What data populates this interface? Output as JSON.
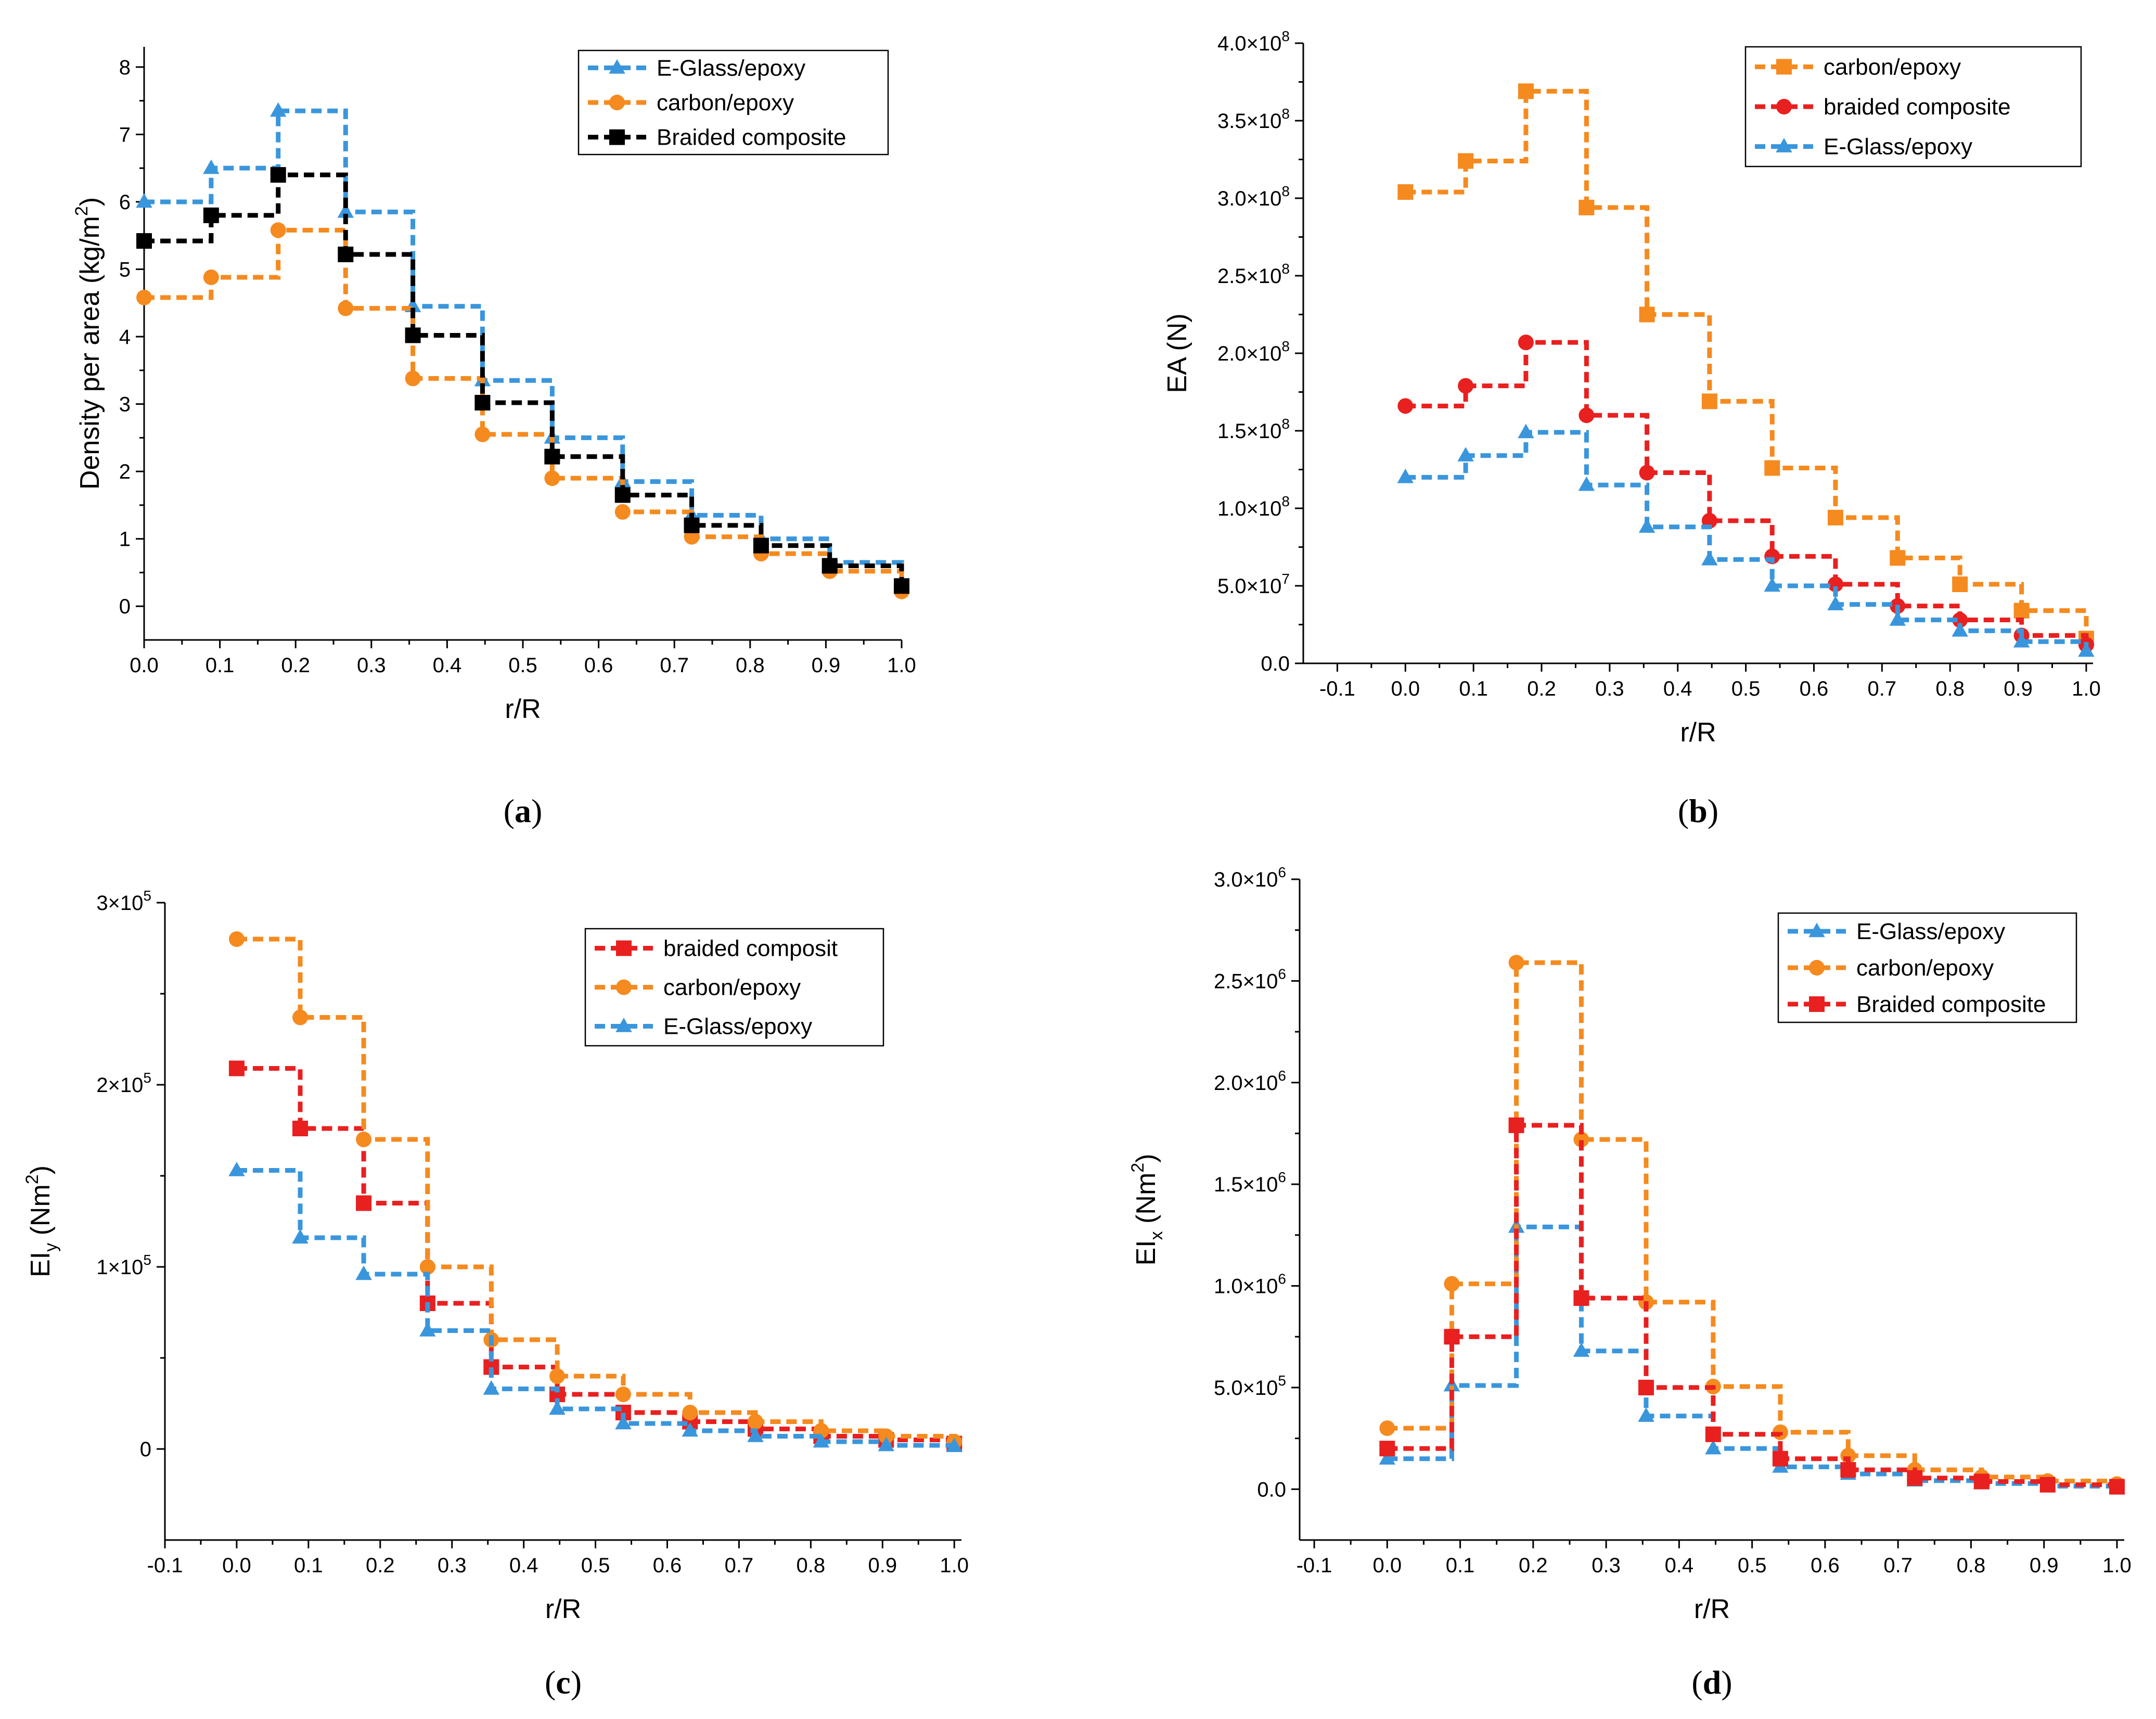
{
  "colors": {
    "E-Glass": "#3a96dc",
    "carbon": "#f58a1f",
    "braided_red": "#e8201f",
    "braided_black": "#000000"
  },
  "chart_data": [
    {
      "panel": "a",
      "panel_label_parts": [
        "(",
        "a",
        ")"
      ],
      "type": "line",
      "step": true,
      "xlabel": "r/R",
      "ylabel": "Density per area (kg/m²)",
      "ylabel_parts": [
        "Density per area (kg/m",
        "2",
        ")"
      ],
      "xlim": [
        0,
        1.0
      ],
      "ylim": [
        -0.5,
        8.3
      ],
      "xticks": [
        0.0,
        0.1,
        0.2,
        0.3,
        0.4,
        0.5,
        0.6,
        0.7,
        0.8,
        0.9,
        1.0
      ],
      "xtick_labels": [
        "0.0",
        "0.1",
        "0.2",
        "0.3",
        "0.4",
        "0.5",
        "0.6",
        "0.7",
        "0.8",
        "0.9",
        "1.0"
      ],
      "yticks": [
        0,
        1,
        2,
        3,
        4,
        5,
        6,
        7,
        8
      ],
      "ytick_labels": [
        "0",
        "1",
        "2",
        "3",
        "4",
        "5",
        "6",
        "7",
        "8"
      ],
      "x": [
        0,
        0.0885,
        0.177,
        0.266,
        0.3548,
        0.4467,
        0.5387,
        0.6317,
        0.7229,
        0.8145,
        0.905,
        1.0
      ],
      "legend_position": "top-right",
      "series": [
        {
          "name": "E-Glass/epoxy",
          "marker": "triangle",
          "color_key": "E-Glass",
          "values": [
            6.0,
            6.5,
            7.35,
            5.85,
            4.45,
            3.35,
            2.5,
            1.85,
            1.35,
            1.0,
            0.65,
            0.3
          ]
        },
        {
          "name": "carbon/epoxy",
          "marker": "circle",
          "color_key": "carbon",
          "values": [
            4.58,
            4.88,
            5.58,
            4.42,
            3.38,
            2.55,
            1.9,
            1.4,
            1.03,
            0.78,
            0.52,
            0.22
          ]
        },
        {
          "name": "Braided composite",
          "marker": "square",
          "color_key": "braided_black",
          "values": [
            5.42,
            5.8,
            6.4,
            5.22,
            4.02,
            3.02,
            2.22,
            1.65,
            1.2,
            0.9,
            0.6,
            0.3
          ]
        }
      ]
    },
    {
      "panel": "b",
      "panel_label_parts": [
        "(",
        "b",
        ")"
      ],
      "type": "line",
      "step": true,
      "xlabel": "r/R",
      "ylabel": "EA (N)",
      "xlim": [
        -0.15,
        1.01
      ],
      "ylim": [
        0,
        400000000.0
      ],
      "xticks": [
        -0.1,
        0.0,
        0.1,
        0.2,
        0.3,
        0.4,
        0.5,
        0.6,
        0.7,
        0.8,
        0.9,
        1.0
      ],
      "xtick_labels": [
        "-0.1",
        "0.0",
        "0.1",
        "0.2",
        "0.3",
        "0.4",
        "0.5",
        "0.6",
        "0.7",
        "0.8",
        "0.9",
        "1.0"
      ],
      "yticks": [
        0,
        50000000.0,
        100000000.0,
        150000000.0,
        200000000.0,
        250000000.0,
        300000000.0,
        350000000.0,
        400000000.0
      ],
      "ytick_labels": [
        {
          "m": "0.0",
          "e": ""
        },
        {
          "m": "5.0×10",
          "e": "7"
        },
        {
          "m": "1.0×10",
          "e": "8"
        },
        {
          "m": "1.5×10",
          "e": "8"
        },
        {
          "m": "2.0×10",
          "e": "8"
        },
        {
          "m": "2.5×10",
          "e": "8"
        },
        {
          "m": "3.0×10",
          "e": "8"
        },
        {
          "m": "3.5×10",
          "e": "8"
        },
        {
          "m": "4.0×10",
          "e": "8"
        }
      ],
      "x": [
        0,
        0.0885,
        0.177,
        0.266,
        0.3548,
        0.4467,
        0.5387,
        0.6317,
        0.7229,
        0.8145,
        0.905,
        1.0
      ],
      "legend_position": "top-right",
      "series": [
        {
          "name": "carbon/epoxy",
          "marker": "square",
          "color_key": "carbon",
          "values": [
            304000000.0,
            324000000.0,
            369000000.0,
            294000000.0,
            225000000.0,
            169000000.0,
            126000000.0,
            94000000.0,
            68000000.0,
            51000000.0,
            34000000.0,
            16000000.0
          ]
        },
        {
          "name": "braided composite",
          "marker": "circle",
          "color_key": "braided_red",
          "values": [
            166000000.0,
            179000000.0,
            207000000.0,
            160000000.0,
            123000000.0,
            92000000.0,
            69000000.0,
            51000000.0,
            37000000.0,
            28000000.0,
            18000000.0,
            12000000.0
          ]
        },
        {
          "name": "E-Glass/epoxy",
          "marker": "triangle",
          "color_key": "E-Glass",
          "values": [
            120000000.0,
            134000000.0,
            149000000.0,
            115000000.0,
            88000000.0,
            67000000.0,
            50000000.0,
            38000000.0,
            28000000.0,
            21000000.0,
            14000000.0,
            8000000.0
          ]
        }
      ]
    },
    {
      "panel": "c",
      "panel_label_parts": [
        "(",
        "c",
        ")"
      ],
      "type": "line",
      "step": true,
      "xlabel": "r/R",
      "ylabel": "EI_y (Nm²)",
      "ylabel_parts": [
        "EI",
        "y",
        " (Nm",
        "2",
        ")"
      ],
      "xlim": [
        -0.1,
        1.01
      ],
      "ylim": [
        -50000.0,
        300000.0
      ],
      "xticks": [
        -0.1,
        0.0,
        0.1,
        0.2,
        0.3,
        0.4,
        0.5,
        0.6,
        0.7,
        0.8,
        0.9,
        1.0
      ],
      "xtick_labels": [
        "-0.1",
        "0.0",
        "0.1",
        "0.2",
        "0.3",
        "0.4",
        "0.5",
        "0.6",
        "0.7",
        "0.8",
        "0.9",
        "1.0"
      ],
      "yticks": [
        0,
        100000.0,
        200000.0,
        300000.0
      ],
      "ytick_labels": [
        {
          "m": "0",
          "e": ""
        },
        {
          "m": "1×10",
          "e": "5"
        },
        {
          "m": "2×10",
          "e": "5"
        },
        {
          "m": "3×10",
          "e": "5"
        }
      ],
      "x": [
        0,
        0.0885,
        0.177,
        0.266,
        0.3548,
        0.4467,
        0.5387,
        0.6317,
        0.7229,
        0.8145,
        0.905,
        1.0
      ],
      "legend_position": "top-right",
      "series": [
        {
          "name": "braided composit",
          "marker": "square",
          "color_key": "braided_red",
          "values": [
            209000,
            176000,
            135000,
            80000,
            45000,
            30000,
            20000,
            15000,
            11000,
            7000,
            5000,
            3000
          ]
        },
        {
          "name": "carbon/epoxy",
          "marker": "circle",
          "color_key": "carbon",
          "values": [
            280000,
            237000,
            170000,
            100000,
            60000,
            40000,
            30000,
            20000,
            15000,
            10000,
            7000,
            4000
          ]
        },
        {
          "name": "E-Glass/epoxy",
          "marker": "triangle",
          "color_key": "E-Glass",
          "values": [
            153000,
            116000,
            96000,
            65000,
            33000,
            22000,
            14000,
            10000,
            7000,
            4000,
            2000,
            1500
          ]
        }
      ]
    },
    {
      "panel": "d",
      "panel_label_parts": [
        "(",
        "d",
        ")"
      ],
      "type": "line",
      "step": true,
      "xlabel": "r/R",
      "ylabel": "EI_x (Nm²)",
      "ylabel_parts": [
        "EI",
        "x",
        " (Nm",
        "2",
        ")"
      ],
      "xlim": [
        -0.12,
        1.01
      ],
      "ylim": [
        -250000.0,
        3000000.0
      ],
      "xticks": [
        -0.1,
        0.0,
        0.1,
        0.2,
        0.3,
        0.4,
        0.5,
        0.6,
        0.7,
        0.8,
        0.9,
        1.0
      ],
      "xtick_labels": [
        "-0.1",
        "0.0",
        "0.1",
        "0.2",
        "0.3",
        "0.4",
        "0.5",
        "0.6",
        "0.7",
        "0.8",
        "0.9",
        "1.0"
      ],
      "yticks": [
        0,
        500000.0,
        1000000.0,
        1500000.0,
        2000000.0,
        2500000.0,
        3000000.0
      ],
      "ytick_labels": [
        {
          "m": "0.0",
          "e": ""
        },
        {
          "m": "5.0×10",
          "e": "5"
        },
        {
          "m": "1.0×10",
          "e": "6"
        },
        {
          "m": "1.5×10",
          "e": "6"
        },
        {
          "m": "2.0×10",
          "e": "6"
        },
        {
          "m": "2.5×10",
          "e": "6"
        },
        {
          "m": "3.0×10",
          "e": "6"
        }
      ],
      "x": [
        0,
        0.0885,
        0.177,
        0.266,
        0.3548,
        0.4467,
        0.5387,
        0.6317,
        0.7229,
        0.8145,
        0.905,
        1.0
      ],
      "legend_position": "top-right",
      "series": [
        {
          "name": "E-Glass/epoxy",
          "marker": "triangle",
          "color_key": "E-Glass",
          "values": [
            150000,
            510000,
            1290000,
            680000,
            360000,
            200000,
            110000,
            75000,
            42000,
            28000,
            15000,
            8000
          ]
        },
        {
          "name": "carbon/epoxy",
          "marker": "circle",
          "color_key": "carbon",
          "values": [
            300000,
            1010000,
            2590000,
            1720000,
            920000,
            505000,
            280000,
            165000,
            95000,
            60000,
            40000,
            25000
          ]
        },
        {
          "name": "Braided composite",
          "marker": "square",
          "color_key": "braided_red",
          "values": [
            200000,
            750000,
            1790000,
            940000,
            500000,
            270000,
            150000,
            95000,
            55000,
            38000,
            22000,
            12000
          ]
        }
      ]
    }
  ]
}
